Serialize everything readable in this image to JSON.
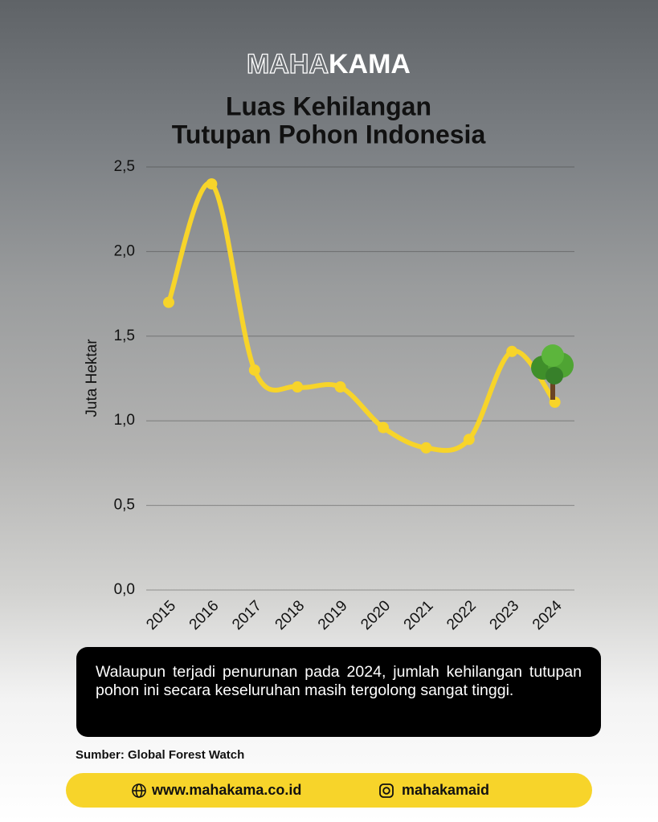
{
  "brand": {
    "light": "MAHA",
    "bold": "KAMA"
  },
  "chart_data": {
    "type": "line",
    "title": [
      "Luas Kehilangan",
      "Tutupan Pohon Indonesia"
    ],
    "y_label": "Juta Hektar",
    "categories": [
      "2015",
      "2016",
      "2017",
      "2018",
      "2019",
      "2020",
      "2021",
      "2022",
      "2023",
      "2024"
    ],
    "values": [
      1.7,
      2.4,
      1.3,
      1.2,
      1.2,
      0.96,
      0.84,
      0.89,
      1.41,
      1.11
    ],
    "color": "#f7d42a",
    "ylim": [
      0,
      2.5
    ],
    "yticks": [
      {
        "value": 0,
        "label": "0,0"
      },
      {
        "value": 0.5,
        "label": "0,5"
      },
      {
        "value": 1,
        "label": "1,0"
      },
      {
        "value": 1.5,
        "label": "1,5"
      },
      {
        "value": 2,
        "label": "2,0"
      },
      {
        "value": 2.5,
        "label": "2,5"
      }
    ],
    "grid": true
  },
  "note": "Walaupun terjadi penurunan pada 2024, jumlah kehilangan tutupan pohon ini secara keseluruhan masih tergolong sangat tinggi.",
  "source": "Sumber: Global Forest Watch",
  "footer": {
    "website": "www.mahakama.co.id",
    "instagram": "mahakamaid"
  }
}
